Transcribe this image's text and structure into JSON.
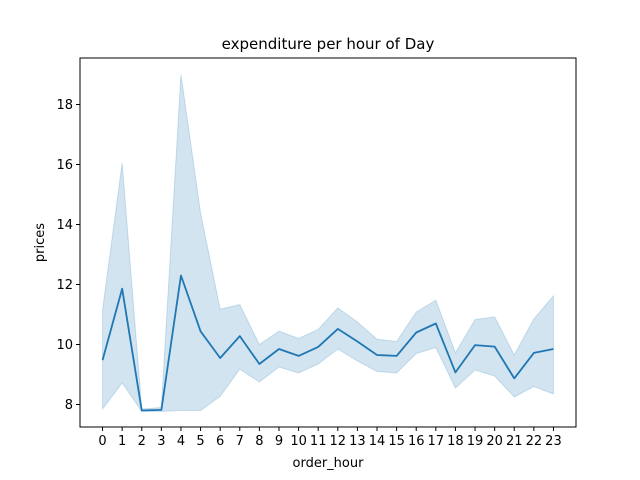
{
  "chart_data": {
    "type": "line",
    "title": "expenditure per hour of Day",
    "xlabel": "order_hour",
    "ylabel": "prices",
    "x": [
      0,
      1,
      2,
      3,
      4,
      5,
      6,
      7,
      8,
      9,
      10,
      11,
      12,
      13,
      14,
      15,
      16,
      17,
      18,
      19,
      20,
      21,
      22,
      23
    ],
    "xticks": [
      "0",
      "1",
      "2",
      "3",
      "4",
      "5",
      "6",
      "7",
      "8",
      "9",
      "10",
      "11",
      "12",
      "13",
      "14",
      "15",
      "16",
      "17",
      "18",
      "19",
      "20",
      "21",
      "22",
      "23"
    ],
    "xlim": [
      -1.15,
      24.15
    ],
    "ylim": [
      7.25,
      19.55
    ],
    "yticks": [
      8,
      10,
      12,
      14,
      16,
      18
    ],
    "yticklabels": [
      "8",
      "10",
      "12",
      "14",
      "16",
      "18"
    ],
    "grid": false,
    "series": [
      {
        "values": [
          9.48,
          11.86,
          7.8,
          7.82,
          12.3,
          10.44,
          9.55,
          10.28,
          9.35,
          9.85,
          9.62,
          9.92,
          10.52,
          10.1,
          9.65,
          9.62,
          10.4,
          10.7,
          9.07,
          9.98,
          9.93,
          8.87,
          9.72,
          9.85
        ],
        "ci_lower": [
          7.85,
          8.72,
          7.77,
          7.77,
          7.8,
          7.8,
          8.27,
          9.18,
          8.75,
          9.25,
          9.05,
          9.35,
          9.85,
          9.45,
          9.1,
          9.05,
          9.7,
          9.9,
          8.55,
          9.15,
          8.95,
          8.25,
          8.6,
          8.35
        ],
        "ci_upper": [
          11.15,
          16.05,
          7.85,
          7.9,
          19.0,
          14.38,
          11.18,
          11.33,
          10.0,
          10.45,
          10.2,
          10.5,
          11.22,
          10.75,
          10.18,
          10.1,
          11.08,
          11.48,
          9.72,
          10.83,
          10.92,
          9.65,
          10.85,
          11.62
        ],
        "color": "#1f77b4",
        "band_color": "#1f77b4"
      }
    ]
  }
}
